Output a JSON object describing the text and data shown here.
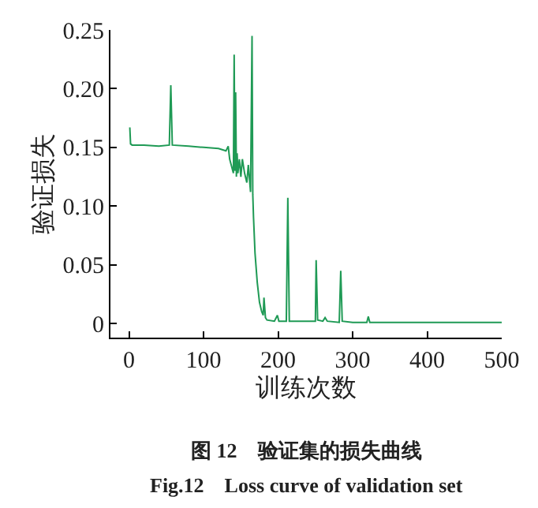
{
  "chart_data": {
    "type": "line",
    "xlabel": "训练次数",
    "ylabel": "验证损失",
    "annotations": [
      "图 12　验证集的损失曲线",
      "Fig.12　Loss curve of validation set"
    ],
    "x": [
      1,
      2,
      4,
      20,
      40,
      54,
      56,
      58,
      80,
      100,
      120,
      130,
      133,
      135,
      140,
      141,
      142,
      143,
      144,
      145,
      146,
      148,
      150,
      152,
      155,
      158,
      160,
      163,
      165,
      166,
      167,
      169,
      172,
      175,
      178,
      180,
      181,
      183,
      185,
      195,
      199,
      201,
      205,
      211,
      213,
      215,
      220,
      240,
      250,
      251,
      253,
      260,
      263,
      266,
      282,
      284,
      286,
      300,
      319,
      321,
      323,
      350,
      400,
      450,
      500
    ],
    "series": [
      {
        "color": "#1f9a55",
        "values": [
          0.167,
          0.153,
          0.152,
          0.152,
          0.151,
          0.152,
          0.203,
          0.152,
          0.151,
          0.15,
          0.149,
          0.147,
          0.151,
          0.14,
          0.128,
          0.229,
          0.13,
          0.197,
          0.125,
          0.145,
          0.128,
          0.14,
          0.125,
          0.14,
          0.128,
          0.12,
          0.135,
          0.112,
          0.245,
          0.11,
          0.09,
          0.06,
          0.035,
          0.018,
          0.01,
          0.007,
          0.022,
          0.005,
          0.003,
          0.002,
          0.007,
          0.002,
          0.002,
          0.002,
          0.107,
          0.002,
          0.002,
          0.002,
          0.002,
          0.054,
          0.003,
          0.002,
          0.005,
          0.002,
          0.001,
          0.045,
          0.002,
          0.001,
          0.001,
          0.006,
          0.001,
          0.001,
          0.001,
          0.001,
          0.001
        ]
      }
    ],
    "xlim": [
      -25,
      500
    ],
    "ylim": [
      -0.012,
      0.25
    ],
    "xticks": [
      0,
      100,
      200,
      300,
      400,
      500
    ],
    "yticks": [
      {
        "value": 0,
        "label": "0"
      },
      {
        "value": 0.05,
        "label": "0.05"
      },
      {
        "value": 0.1,
        "label": "0.10"
      },
      {
        "value": 0.15,
        "label": "0.15"
      },
      {
        "value": 0.2,
        "label": "0.20"
      },
      {
        "value": 0.25,
        "label": "0.25"
      }
    ],
    "tick_labels": "xy"
  }
}
